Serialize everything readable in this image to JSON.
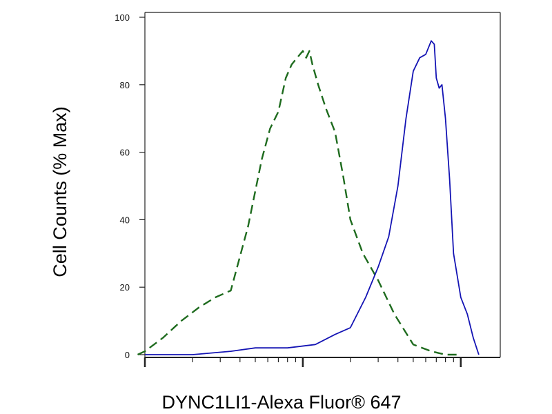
{
  "chart_data": {
    "type": "line",
    "xlabel": "DYNC1LI1-Alexa Fluor® 647",
    "ylabel": "Cell Counts (% Max)",
    "x_scale": "log",
    "ylim": [
      0,
      100
    ],
    "yticks": [
      "0",
      "20",
      "40",
      "60",
      "80",
      "100"
    ],
    "grid": false,
    "series": [
      {
        "style": "dashed",
        "color": "#1e6b1e",
        "x": [
          0.09,
          0.1,
          0.13,
          0.17,
          0.22,
          0.28,
          0.35,
          0.45,
          0.55,
          0.62,
          0.7,
          0.78,
          0.85,
          0.92,
          1.0,
          1.05,
          1.1,
          1.15,
          1.25,
          1.4,
          1.6,
          1.8,
          2.0,
          2.4,
          3.0,
          3.8,
          5.0,
          6.5,
          8.0,
          10.0
        ],
        "y": [
          0,
          1,
          5,
          10,
          14,
          17,
          19,
          38,
          58,
          67,
          72,
          82,
          86,
          88,
          90,
          88,
          90,
          86,
          80,
          73,
          66,
          53,
          40,
          30,
          22,
          12,
          3,
          1,
          0,
          0
        ]
      },
      {
        "style": "solid",
        "color": "#1414b4",
        "x": [
          0.1,
          0.2,
          0.35,
          0.5,
          0.8,
          1.2,
          1.6,
          2.0,
          2.5,
          3.0,
          3.5,
          4.0,
          4.5,
          5.0,
          5.5,
          6.0,
          6.5,
          6.8,
          7.0,
          7.3,
          7.6,
          8.0,
          8.5,
          9.0,
          10.0,
          11.0,
          12.0,
          13.0
        ],
        "y": [
          0,
          0,
          1,
          2,
          2,
          3,
          6,
          8,
          17,
          26,
          35,
          50,
          70,
          84,
          88,
          89,
          93,
          92,
          82,
          79,
          80,
          70,
          52,
          30,
          17,
          12,
          5,
          0
        ]
      }
    ]
  }
}
